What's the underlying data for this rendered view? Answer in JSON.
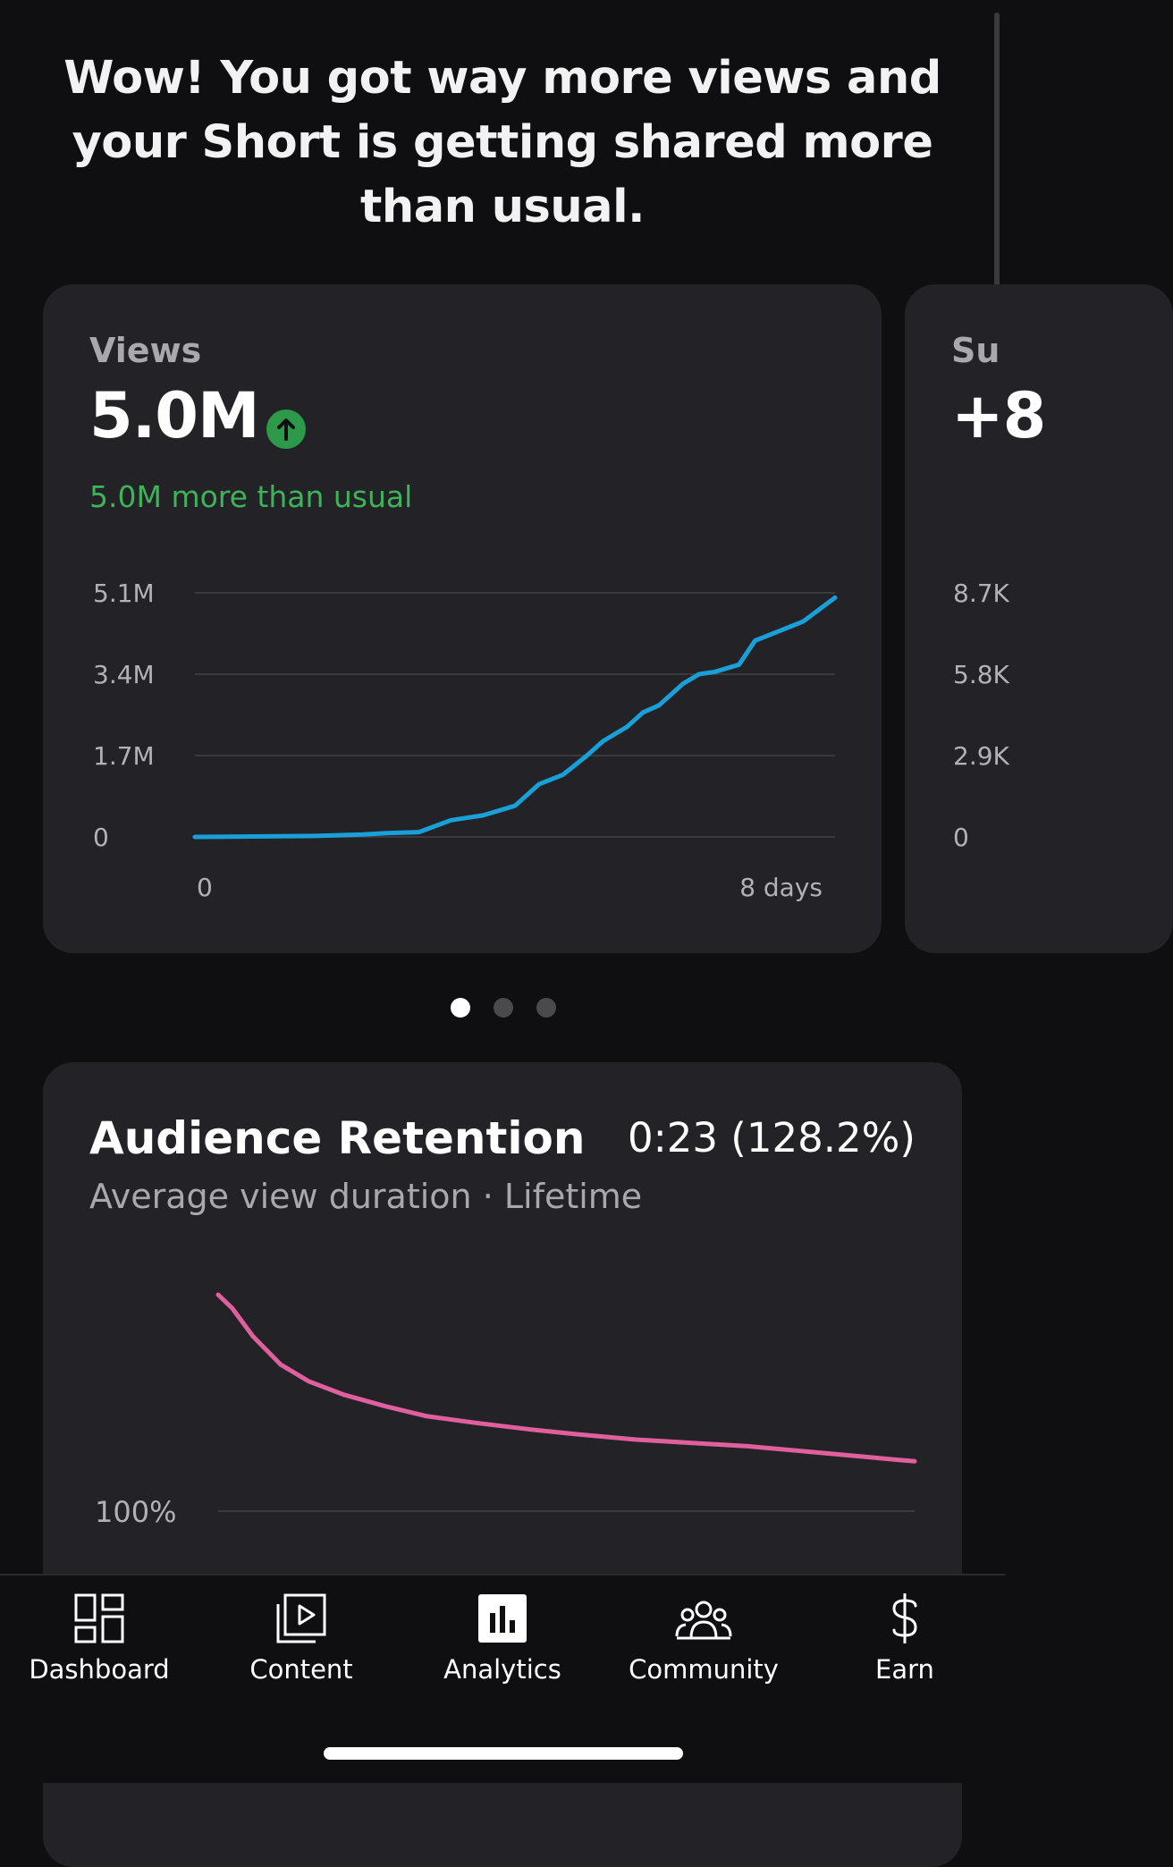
{
  "headline": "Wow! You got way more views and your Short is getting shared more than usual.",
  "views_card": {
    "label": "Views",
    "value": "5.0M",
    "delta": "5.0M more than usual",
    "trend_icon": "arrow-up-icon"
  },
  "subs_card": {
    "label_partial": "Su",
    "value_partial": "+8",
    "y_ticks_partial": [
      "8.7K",
      "5.8K",
      "2.9K",
      "0"
    ]
  },
  "pager": {
    "count": 3,
    "active": 0
  },
  "retention_card": {
    "title": "Audience Retention",
    "value": "0:23 (128.2%)",
    "subtitle": "Average view duration · Lifetime",
    "y_label": "100%"
  },
  "nav": {
    "items": [
      {
        "label": "Dashboard",
        "icon": "dashboard-icon"
      },
      {
        "label": "Content",
        "icon": "content-icon"
      },
      {
        "label": "Analytics",
        "icon": "analytics-icon"
      },
      {
        "label": "Community",
        "icon": "community-icon"
      },
      {
        "label": "Earn",
        "icon": "earn-icon"
      }
    ]
  },
  "colors": {
    "views_line": "#1aa0d8",
    "retention_line": "#e0609e",
    "positive": "#3db35a",
    "card_bg": "#232226"
  },
  "chart_data": [
    {
      "type": "line",
      "title": "Views",
      "xlabel": "",
      "ylabel": "",
      "x_ticks": [
        "0",
        "8 days"
      ],
      "y_ticks": [
        "0",
        "1.7M",
        "3.4M",
        "5.1M"
      ],
      "xlim": [
        0,
        8
      ],
      "ylim": [
        0,
        5.1
      ],
      "grid": true,
      "series": [
        {
          "x": [
            0,
            1.5,
            2.1,
            2.4,
            2.8,
            3.2,
            3.6,
            4.0,
            4.3,
            4.6,
            4.9,
            5.1,
            5.4,
            5.6,
            5.8,
            6.1,
            6.3,
            6.5,
            6.8,
            7.0,
            7.3,
            7.6,
            8.0
          ],
          "y": [
            0,
            0.02,
            0.05,
            0.08,
            0.1,
            0.35,
            0.45,
            0.65,
            1.1,
            1.3,
            1.7,
            2.0,
            2.3,
            2.6,
            2.75,
            3.2,
            3.4,
            3.45,
            3.6,
            4.1,
            4.3,
            4.5,
            5.0
          ]
        }
      ]
    },
    {
      "type": "line",
      "title": "Audience Retention",
      "xlabel": "",
      "ylabel": "",
      "y_ticks": [
        "100%"
      ],
      "grid": true,
      "series": [
        {
          "x": [
            0,
            0.02,
            0.05,
            0.09,
            0.13,
            0.18,
            0.24,
            0.3,
            0.37,
            0.45,
            0.52,
            0.6,
            0.68,
            0.76,
            0.84,
            0.92,
            0.97,
            1.0
          ],
          "y": [
            230,
            222,
            205,
            188,
            178,
            170,
            163,
            157,
            153,
            149,
            146,
            143,
            141,
            139,
            136,
            133,
            131,
            130
          ]
        }
      ]
    }
  ]
}
